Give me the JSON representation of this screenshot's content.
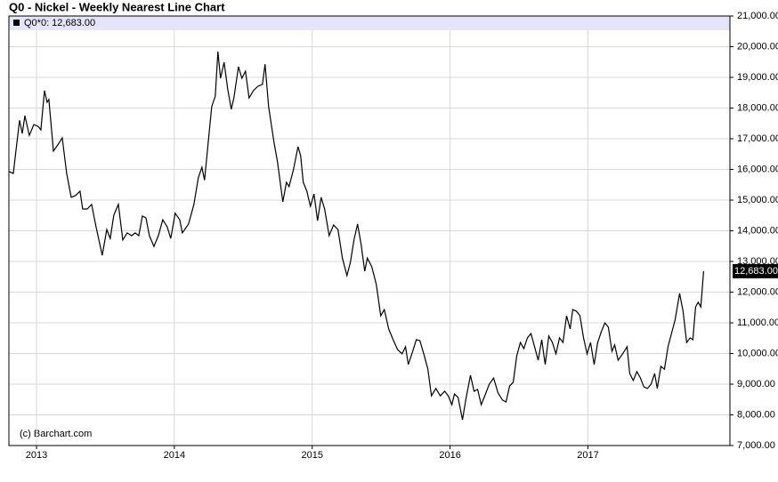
{
  "chart_data": {
    "type": "line",
    "title": "Q0 - Nickel - Weekly Nearest Line Chart",
    "legend": "Q0*0: 12,683.00",
    "last_value_label": "12,683.00",
    "credit": "(c) Barchart.com",
    "color": "#000000",
    "grid": true,
    "x": [
      2012.8,
      2012.832,
      2012.877,
      2012.897,
      2012.916,
      2012.948,
      2012.981,
      2013.013,
      2013.032,
      2013.058,
      2013.077,
      2013.09,
      2013.123,
      2013.155,
      2013.187,
      2013.219,
      2013.252,
      2013.284,
      2013.316,
      2013.335,
      2013.368,
      2013.4,
      2013.432,
      2013.477,
      2013.51,
      2013.535,
      2013.561,
      2013.594,
      2013.626,
      2013.658,
      2013.69,
      2013.716,
      2013.742,
      2013.768,
      2013.794,
      2013.819,
      2013.852,
      2013.884,
      2013.916,
      2013.948,
      2013.974,
      2014.006,
      2014.039,
      2014.058,
      2014.103,
      2014.142,
      2014.174,
      2014.2,
      2014.219,
      2014.252,
      2014.271,
      2014.297,
      2014.316,
      2014.335,
      2014.361,
      2014.387,
      2014.413,
      2014.432,
      2014.465,
      2014.49,
      2014.516,
      2014.542,
      2014.574,
      2014.606,
      2014.639,
      2014.658,
      2014.684,
      2014.723,
      2014.748,
      2014.768,
      2014.787,
      2014.813,
      2014.832,
      2014.865,
      2014.897,
      2014.916,
      2014.935,
      2014.961,
      2014.987,
      2015.013,
      2015.039,
      2015.065,
      2015.09,
      2015.123,
      2015.155,
      2015.187,
      2015.219,
      2015.252,
      2015.277,
      2015.303,
      2015.329,
      2015.355,
      2015.381,
      2015.4,
      2015.432,
      2015.465,
      2015.497,
      2015.523,
      2015.555,
      2015.587,
      2015.619,
      2015.652,
      2015.677,
      2015.697,
      2015.729,
      2015.755,
      2015.781,
      2015.813,
      2015.839,
      2015.865,
      2015.897,
      2015.929,
      2015.961,
      2015.987,
      2016.013,
      2016.032,
      2016.058,
      2016.09,
      2016.116,
      2016.148,
      2016.174,
      2016.2,
      2016.226,
      2016.252,
      2016.284,
      2016.316,
      2016.348,
      2016.381,
      2016.406,
      2016.432,
      2016.458,
      2016.484,
      2016.51,
      2016.535,
      2016.561,
      2016.587,
      2016.613,
      2016.639,
      2016.665,
      2016.69,
      2016.716,
      2016.742,
      2016.768,
      2016.794,
      2016.819,
      2016.845,
      2016.871,
      2016.89,
      2016.916,
      2016.942,
      2016.968,
      2016.994,
      2017.019,
      2017.045,
      2017.071,
      2017.097,
      2017.123,
      2017.148,
      2017.174,
      2017.194,
      2017.219,
      2017.252,
      2017.284,
      2017.303,
      2017.329,
      2017.355,
      2017.381,
      2017.406,
      2017.432,
      2017.458,
      2017.484,
      2017.503,
      2017.529,
      2017.555,
      2017.581,
      2017.606,
      2017.632,
      2017.665,
      2017.69,
      2017.716,
      2017.742,
      2017.761,
      2017.781,
      2017.8,
      2017.819,
      2017.839
    ],
    "values": [
      15930,
      15870,
      17600,
      17170,
      17750,
      17110,
      17460,
      17400,
      17290,
      18570,
      18190,
      18280,
      16600,
      16800,
      17030,
      15870,
      15090,
      15150,
      15290,
      14710,
      14710,
      14860,
      14130,
      13200,
      14040,
      13750,
      14510,
      14860,
      13700,
      13930,
      13840,
      13930,
      13840,
      14480,
      14420,
      13840,
      13490,
      13840,
      14360,
      14130,
      13750,
      14570,
      14360,
      13930,
      14220,
      14860,
      15730,
      16070,
      15650,
      17170,
      18040,
      18390,
      19840,
      18970,
      19490,
      18620,
      17960,
      18330,
      19350,
      18970,
      19200,
      18330,
      18570,
      18710,
      18770,
      19430,
      18040,
      16880,
      16250,
      15580,
      14940,
      15580,
      15440,
      16010,
      16740,
      16450,
      15580,
      15290,
      14800,
      15200,
      14330,
      15090,
      14710,
      13840,
      14190,
      14040,
      13110,
      12540,
      12970,
      13700,
      14220,
      13550,
      12680,
      13110,
      12830,
      12250,
      11230,
      11430,
      10800,
      10450,
      10130,
      9990,
      10220,
      9640,
      10070,
      10450,
      10420,
      9930,
      9490,
      8620,
      8860,
      8620,
      8770,
      8620,
      8330,
      8680,
      8570,
      7840,
      8540,
      9290,
      8770,
      8830,
      8330,
      8620,
      9000,
      9200,
      8710,
      8480,
      8420,
      8940,
      9060,
      9930,
      10360,
      10160,
      10510,
      10650,
      10220,
      9780,
      10450,
      9640,
      10570,
      10360,
      9990,
      10510,
      10360,
      11230,
      10800,
      11430,
      11380,
      11230,
      10510,
      9990,
      10360,
      9640,
      10360,
      10710,
      11000,
      10860,
      10070,
      10280,
      9780,
      9990,
      10220,
      9350,
      9120,
      9410,
      9200,
      8910,
      8860,
      9000,
      9350,
      8860,
      9580,
      9490,
      10220,
      10650,
      11090,
      11960,
      11380,
      10360,
      10510,
      10450,
      11520,
      11670,
      11520,
      12683
    ],
    "xlim": [
      2012.8,
      2018.03
    ],
    "xticks": [
      2013,
      2014,
      2015,
      2016,
      2017
    ],
    "ylim": [
      7000,
      21000
    ],
    "yticks": [
      {
        "value": 7000,
        "label": "7,000.00"
      },
      {
        "value": 8000,
        "label": "8,000.00"
      },
      {
        "value": 9000,
        "label": "9,000.00"
      },
      {
        "value": 10000,
        "label": "10,000.00"
      },
      {
        "value": 11000,
        "label": "11,000.00"
      },
      {
        "value": 12000,
        "label": "12,000.00"
      },
      {
        "value": 13000,
        "label": "13,000.00"
      },
      {
        "value": 14000,
        "label": "14,000.00"
      },
      {
        "value": 15000,
        "label": "15,000.00"
      },
      {
        "value": 16000,
        "label": "16,000.00"
      },
      {
        "value": 17000,
        "label": "17,000.00"
      },
      {
        "value": 18000,
        "label": "18,000.00"
      },
      {
        "value": 19000,
        "label": "19,000.00"
      },
      {
        "value": 20000,
        "label": "20,000.00"
      },
      {
        "value": 21000,
        "label": "21,000.00"
      }
    ]
  }
}
